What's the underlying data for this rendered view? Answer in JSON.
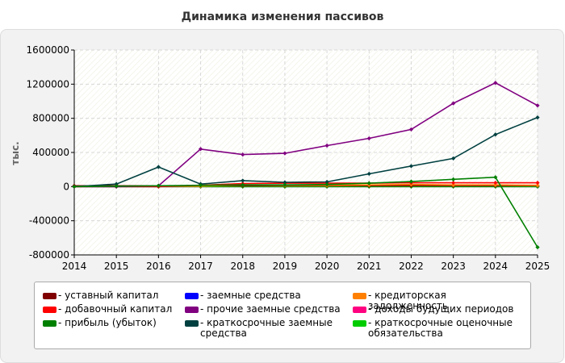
{
  "chart_data": {
    "type": "line",
    "title": "Динамика изменения пассивов",
    "ylabel": "тыс.",
    "xlabel": "",
    "x": [
      "2014",
      "2015",
      "2016",
      "2017",
      "2018",
      "2019",
      "2020",
      "2021",
      "2022",
      "2023",
      "2024",
      "2025"
    ],
    "ylim": [
      -800000,
      1600000
    ],
    "yticks": [
      -800000,
      -400000,
      0,
      400000,
      800000,
      1200000,
      1600000
    ],
    "ytick_labels": [
      "-800000",
      "-400000",
      "0",
      "400000",
      "800000",
      "1200000",
      "1600000"
    ],
    "grid": true,
    "legend_position": "bottom",
    "series": [
      {
        "name": "- уставный капитал",
        "color": "#800000",
        "values": [
          10000,
          10000,
          10000,
          10000,
          10000,
          10000,
          10000,
          10000,
          10000,
          10000,
          10000,
          10000
        ]
      },
      {
        "name": "- добавочный капитал",
        "color": "#ff0000",
        "values": [
          0,
          0,
          0,
          15000,
          35000,
          40000,
          40000,
          40000,
          45000,
          45000,
          45000,
          45000
        ]
      },
      {
        "name": "- прибыль (убыток)",
        "color": "#008000",
        "values": [
          0,
          5000,
          10000,
          15000,
          20000,
          20000,
          25000,
          40000,
          60000,
          85000,
          110000,
          -710000
        ]
      },
      {
        "name": "- заемные средства",
        "color": "#0000ff",
        "values": [
          0,
          0,
          0,
          0,
          0,
          0,
          0,
          0,
          0,
          0,
          0,
          0
        ]
      },
      {
        "name": "- прочие заемные средства",
        "color": "#800080",
        "values": [
          0,
          0,
          10000,
          440000,
          375000,
          390000,
          480000,
          565000,
          670000,
          975000,
          1215000,
          950000
        ]
      },
      {
        "name": "- краткосрочные заемные средства",
        "color": "#004040",
        "values": [
          0,
          30000,
          230000,
          30000,
          70000,
          50000,
          55000,
          150000,
          240000,
          330000,
          610000,
          810000
        ]
      },
      {
        "name": "- кредиторская задолженность",
        "color": "#ff8000",
        "values": [
          0,
          5000,
          5000,
          5000,
          20000,
          15000,
          15000,
          20000,
          25000,
          20000,
          20000,
          15000
        ]
      },
      {
        "name": "- доходы будущих периодов",
        "color": "#ff0080",
        "values": [
          0,
          0,
          0,
          0,
          0,
          0,
          0,
          0,
          0,
          0,
          0,
          0
        ]
      },
      {
        "name": "- краткосрочные оценочные обязательства",
        "color": "#00cc00",
        "values": [
          0,
          0,
          0,
          0,
          0,
          0,
          0,
          0,
          0,
          0,
          0,
          0
        ]
      }
    ]
  }
}
